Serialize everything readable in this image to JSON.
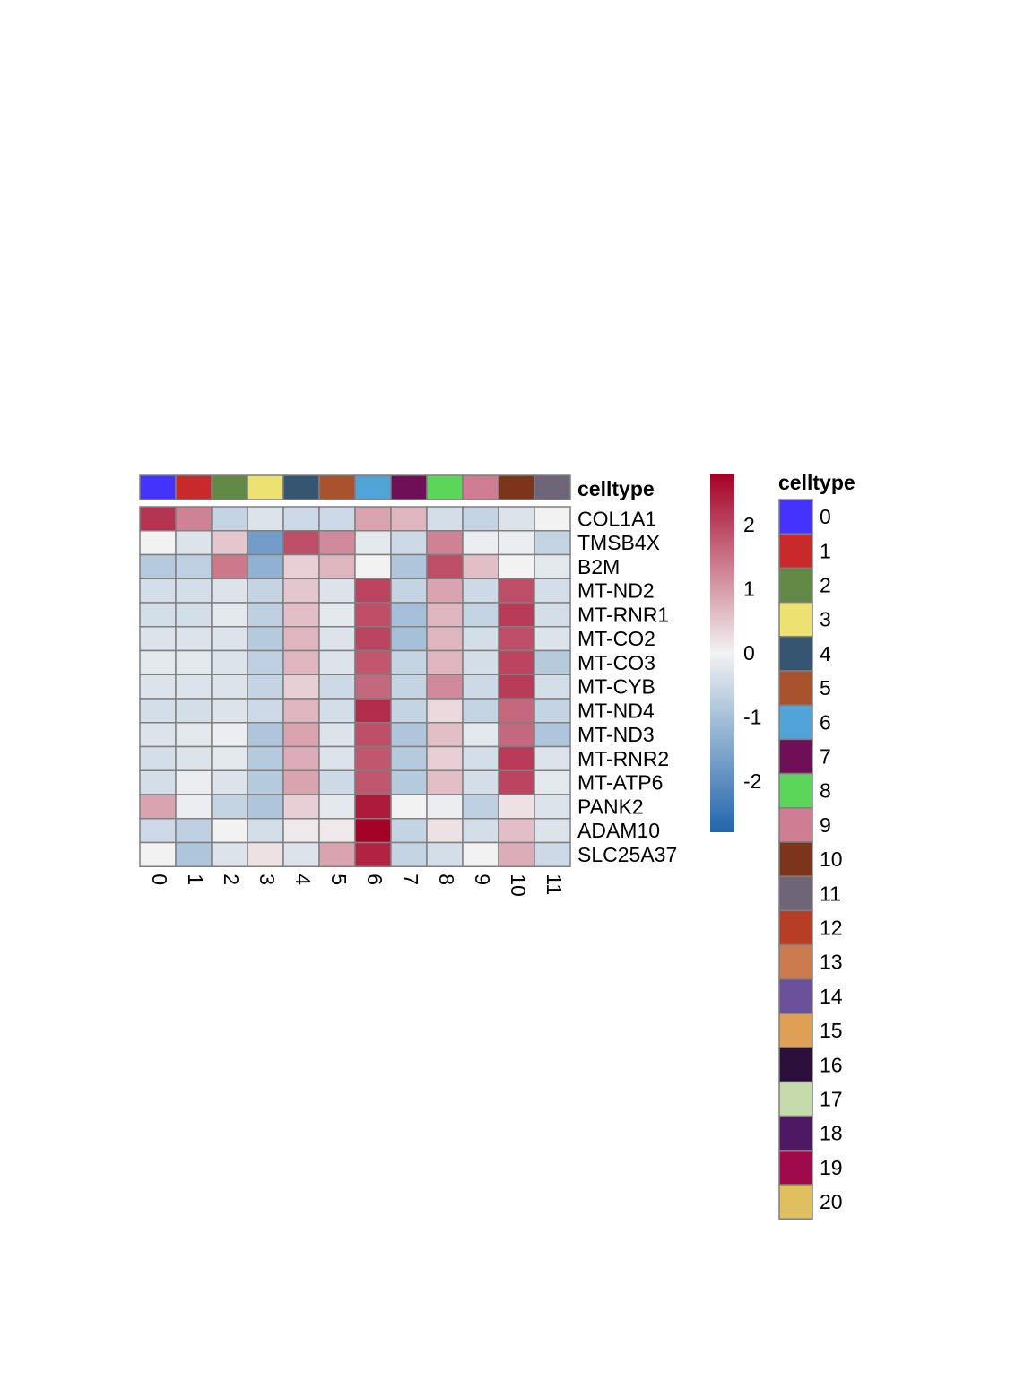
{
  "chart_data": {
    "type": "heatmap",
    "annotation_label": "celltype",
    "columns": [
      "0",
      "1",
      "2",
      "3",
      "4",
      "5",
      "6",
      "7",
      "8",
      "9",
      "10",
      "11"
    ],
    "rows": [
      "COL1A1",
      "TMSB4X",
      "B2M",
      "MT-ND2",
      "MT-RNR1",
      "MT-CO2",
      "MT-CO3",
      "MT-CYB",
      "MT-ND4",
      "MT-ND3",
      "MT-RNR2",
      "MT-ATP6",
      "PANK2",
      "ADAM10",
      "SLC25A37"
    ],
    "values": [
      [
        2.2,
        1.3,
        -0.6,
        -0.3,
        -0.5,
        -0.5,
        0.9,
        0.7,
        -0.4,
        -0.6,
        -0.3,
        0.0
      ],
      [
        0.0,
        -0.3,
        0.5,
        -1.7,
        1.9,
        1.2,
        -0.2,
        -0.5,
        1.3,
        -0.1,
        -0.1,
        -0.6
      ],
      [
        -0.8,
        -0.7,
        1.4,
        -1.3,
        0.4,
        0.7,
        0.0,
        -0.9,
        1.9,
        0.6,
        0.0,
        -0.2
      ],
      [
        -0.4,
        -0.4,
        -0.3,
        -0.6,
        0.5,
        -0.3,
        2.0,
        -0.6,
        0.9,
        -0.5,
        1.9,
        -0.4
      ],
      [
        -0.4,
        -0.4,
        -0.2,
        -0.7,
        0.6,
        -0.2,
        1.9,
        -1.0,
        0.7,
        -0.6,
        2.1,
        -0.4
      ],
      [
        -0.3,
        -0.3,
        -0.3,
        -0.8,
        0.7,
        -0.3,
        2.0,
        -1.0,
        0.7,
        -0.4,
        1.9,
        -0.3
      ],
      [
        -0.2,
        -0.2,
        -0.3,
        -0.7,
        0.7,
        -0.3,
        1.8,
        -0.6,
        0.7,
        -0.4,
        2.0,
        -0.8
      ],
      [
        -0.3,
        -0.3,
        -0.3,
        -0.6,
        0.4,
        -0.5,
        1.6,
        -0.6,
        1.2,
        -0.5,
        2.1,
        -0.4
      ],
      [
        -0.4,
        -0.4,
        -0.3,
        -0.5,
        0.7,
        -0.4,
        2.3,
        -0.6,
        0.3,
        -0.6,
        1.6,
        -0.6
      ],
      [
        -0.3,
        -0.2,
        -0.1,
        -0.9,
        0.9,
        -0.3,
        1.9,
        -0.9,
        0.6,
        -0.2,
        1.6,
        -0.9
      ],
      [
        -0.4,
        -0.3,
        -0.2,
        -0.8,
        0.8,
        -0.3,
        1.8,
        -0.8,
        0.4,
        -0.4,
        2.1,
        -0.3
      ],
      [
        -0.4,
        -0.1,
        -0.3,
        -0.8,
        0.9,
        -0.5,
        1.8,
        -0.8,
        0.6,
        -0.4,
        2.0,
        -0.2
      ],
      [
        0.9,
        -0.1,
        -0.6,
        -0.9,
        0.4,
        -0.2,
        2.5,
        0.0,
        -0.1,
        -0.7,
        0.2,
        -0.3
      ],
      [
        -0.5,
        -0.7,
        0.0,
        -0.4,
        0.1,
        0.1,
        2.8,
        -0.6,
        0.2,
        -0.4,
        0.6,
        -0.3
      ],
      [
        0.0,
        -0.9,
        -0.3,
        0.2,
        -0.3,
        0.9,
        2.4,
        -0.6,
        -0.4,
        0.0,
        0.8,
        -0.5
      ]
    ],
    "colorbar": {
      "ticks": [
        "2",
        "1",
        "0",
        "-1",
        "-2"
      ],
      "tick_values": [
        2,
        1,
        0,
        -1,
        -2
      ],
      "range": [
        -2.8,
        2.8
      ],
      "low_color": "#2166ac",
      "mid_color": "#f2f2f2",
      "high_color": "#a50026"
    },
    "legend": {
      "title": "celltype",
      "items": [
        {
          "label": "0",
          "color": "#4433ff"
        },
        {
          "label": "1",
          "color": "#c8292a"
        },
        {
          "label": "2",
          "color": "#638947"
        },
        {
          "label": "3",
          "color": "#ede271"
        },
        {
          "label": "4",
          "color": "#365570"
        },
        {
          "label": "5",
          "color": "#a9522e"
        },
        {
          "label": "6",
          "color": "#52a3d8"
        },
        {
          "label": "7",
          "color": "#6f0f57"
        },
        {
          "label": "8",
          "color": "#5cd65a"
        },
        {
          "label": "9",
          "color": "#cf7d92"
        },
        {
          "label": "10",
          "color": "#7c351b"
        },
        {
          "label": "11",
          "color": "#6e6678"
        },
        {
          "label": "12",
          "color": "#b73e24"
        },
        {
          "label": "13",
          "color": "#cb7a4e"
        },
        {
          "label": "14",
          "color": "#6a509b"
        },
        {
          "label": "15",
          "color": "#dfa056"
        },
        {
          "label": "16",
          "color": "#2d0f3b"
        },
        {
          "label": "17",
          "color": "#c5dbab"
        },
        {
          "label": "18",
          "color": "#4f1865"
        },
        {
          "label": "19",
          "color": "#a1094d"
        },
        {
          "label": "20",
          "color": "#e0bf5f"
        }
      ]
    }
  }
}
